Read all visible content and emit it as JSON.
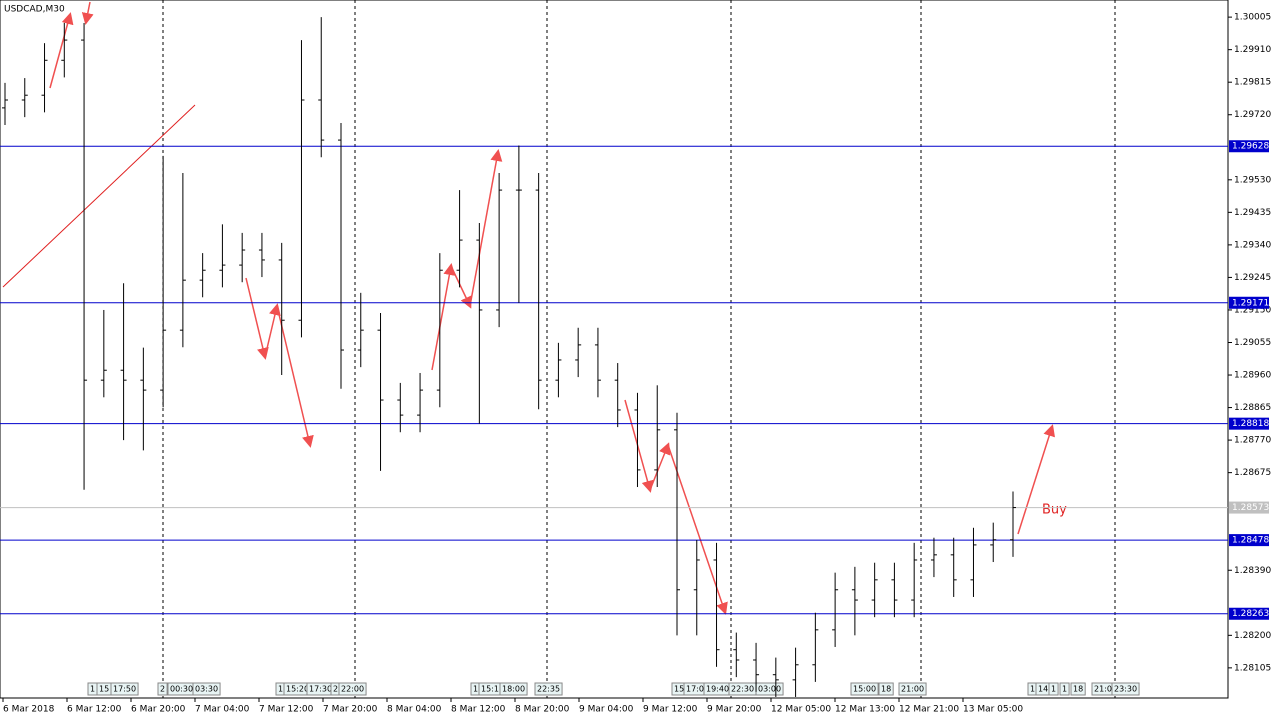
{
  "chart_data": {
    "type": "ohlc",
    "title": "USDCAD,M30",
    "open": [
      1.2974,
      1.29763,
      1.29777,
      1.29879,
      1.29938,
      1.28945,
      1.28974,
      1.28945,
      1.28916,
      1.29091,
      1.29237,
      1.29266,
      1.29281,
      1.29325,
      1.29296,
      1.2912,
      1.29763,
      1.29646,
      1.29033,
      1.29091,
      1.28887,
      1.28843,
      1.28916,
      1.29266,
      1.29354,
      1.2915,
      1.295,
      1.295,
      1.28945,
      1.29004,
      1.29048,
      1.28945,
      1.28858,
      1.28683,
      1.288,
      1.28333,
      1.2842,
      1.28158,
      1.28128,
      1.28085,
      1.2807,
      1.28114,
      1.28216,
      1.28333,
      1.28303,
      1.28362,
      1.28303,
      1.2842,
      1.28435,
      1.28362,
      1.28464,
      1.28479
    ],
    "high": [
      1.29813,
      1.29827,
      1.29929,
      1.29988,
      1.29988,
      1.2915,
      1.29228,
      1.2904,
      1.296,
      1.2955,
      1.29316,
      1.294,
      1.29375,
      1.29375,
      1.29346,
      1.29938,
      1.30005,
      1.29696,
      1.292,
      1.29141,
      1.28937,
      1.28966,
      1.29316,
      1.295,
      1.29404,
      1.2955,
      1.2963,
      1.2955,
      1.29054,
      1.29098,
      1.29098,
      1.28995,
      1.28908,
      1.2893,
      1.2885,
      1.28478,
      1.2847,
      1.28208,
      1.28178,
      1.28135,
      1.28164,
      1.28266,
      1.28383,
      1.284,
      1.28412,
      1.28412,
      1.2847,
      1.28485,
      1.28485,
      1.28514,
      1.28529,
      1.2862
    ],
    "low": [
      1.2969,
      1.29713,
      1.29727,
      1.29829,
      1.28625,
      1.28895,
      1.2877,
      1.2874,
      1.28866,
      1.29041,
      1.29187,
      1.29216,
      1.29231,
      1.29246,
      1.2896,
      1.2907,
      1.29596,
      1.2892,
      1.28983,
      1.2868,
      1.28793,
      1.28793,
      1.28866,
      1.29216,
      1.28818,
      1.291,
      1.29171,
      1.2886,
      1.28895,
      1.28954,
      1.28895,
      1.28808,
      1.28633,
      1.28633,
      1.282,
      1.282,
      1.28108,
      1.28078,
      1.28035,
      1.2802,
      1.2802,
      1.28064,
      1.28166,
      1.282,
      1.28253,
      1.28253,
      1.28253,
      1.2837,
      1.28312,
      1.28312,
      1.28414,
      1.28429
    ],
    "close": [
      1.29763,
      1.29777,
      1.29879,
      1.29938,
      1.28945,
      1.28974,
      1.28945,
      1.28916,
      1.29091,
      1.29237,
      1.29266,
      1.29281,
      1.29325,
      1.29296,
      1.2912,
      1.29763,
      1.29646,
      1.29033,
      1.29091,
      1.28887,
      1.28843,
      1.28916,
      1.29266,
      1.29354,
      1.2915,
      1.295,
      1.295,
      1.28945,
      1.29004,
      1.29048,
      1.28945,
      1.28858,
      1.28683,
      1.288,
      1.28333,
      1.2842,
      1.28158,
      1.28128,
      1.28085,
      1.2807,
      1.28114,
      1.28216,
      1.28333,
      1.28303,
      1.28362,
      1.28303,
      1.2842,
      1.28435,
      1.28362,
      1.28464,
      1.28479,
      1.28573
    ],
    "ylim": [
      1.28017,
      1.30055
    ],
    "yticks": [
      1.30005,
      {
        "value": 1.2991,
        "label": "1.29910"
      },
      1.29815,
      {
        "value": 1.2972,
        "label": "1.29720"
      },
      {
        "value": 1.2953,
        "label": "1.29530"
      },
      1.29435,
      {
        "value": 1.2934,
        "label": "1.29340"
      },
      1.29245,
      {
        "value": 1.2915,
        "label": "1.29150"
      },
      1.29055,
      {
        "value": 1.2896,
        "label": "1.28960"
      },
      1.28865,
      {
        "value": 1.2877,
        "label": "1.28770"
      },
      1.28675,
      {
        "value": 1.2839,
        "label": "1.28390"
      },
      {
        "value": 1.282,
        "label": "1.28200"
      },
      1.28105
    ],
    "levels": [
      1.29628,
      1.29171,
      1.28818,
      1.28478,
      1.28263
    ],
    "level_color": "#0000cc",
    "current_price": 1.28573,
    "x_labels": [
      "6 Mar 2018",
      "6 Mar 12:00",
      "6 Mar 20:00",
      "7 Mar 04:00",
      "7 Mar 12:00",
      "7 Mar 20:00",
      "8 Mar 04:00",
      "8 Mar 12:00",
      "8 Mar 20:00",
      "9 Mar 04:00",
      "9 Mar 12:00",
      "9 Mar 20:00",
      "12 Mar 05:00",
      "12 Mar 13:00",
      "12 Mar 21:00",
      "13 Mar 05:00"
    ],
    "event_tags": [
      "1",
      "15",
      "17:50",
      "2",
      "00:30",
      "03:30",
      "1",
      "15:20",
      "17:30",
      "2",
      "22:00",
      "1",
      "15:1",
      "18:00",
      "22:35",
      "15",
      "17:0",
      "19:40",
      "22:30",
      "03:00",
      "15:00",
      "18",
      "21:00",
      "1",
      "14",
      "1",
      "1",
      "18",
      "21:0",
      "23:30"
    ],
    "annotation": "Buy"
  }
}
